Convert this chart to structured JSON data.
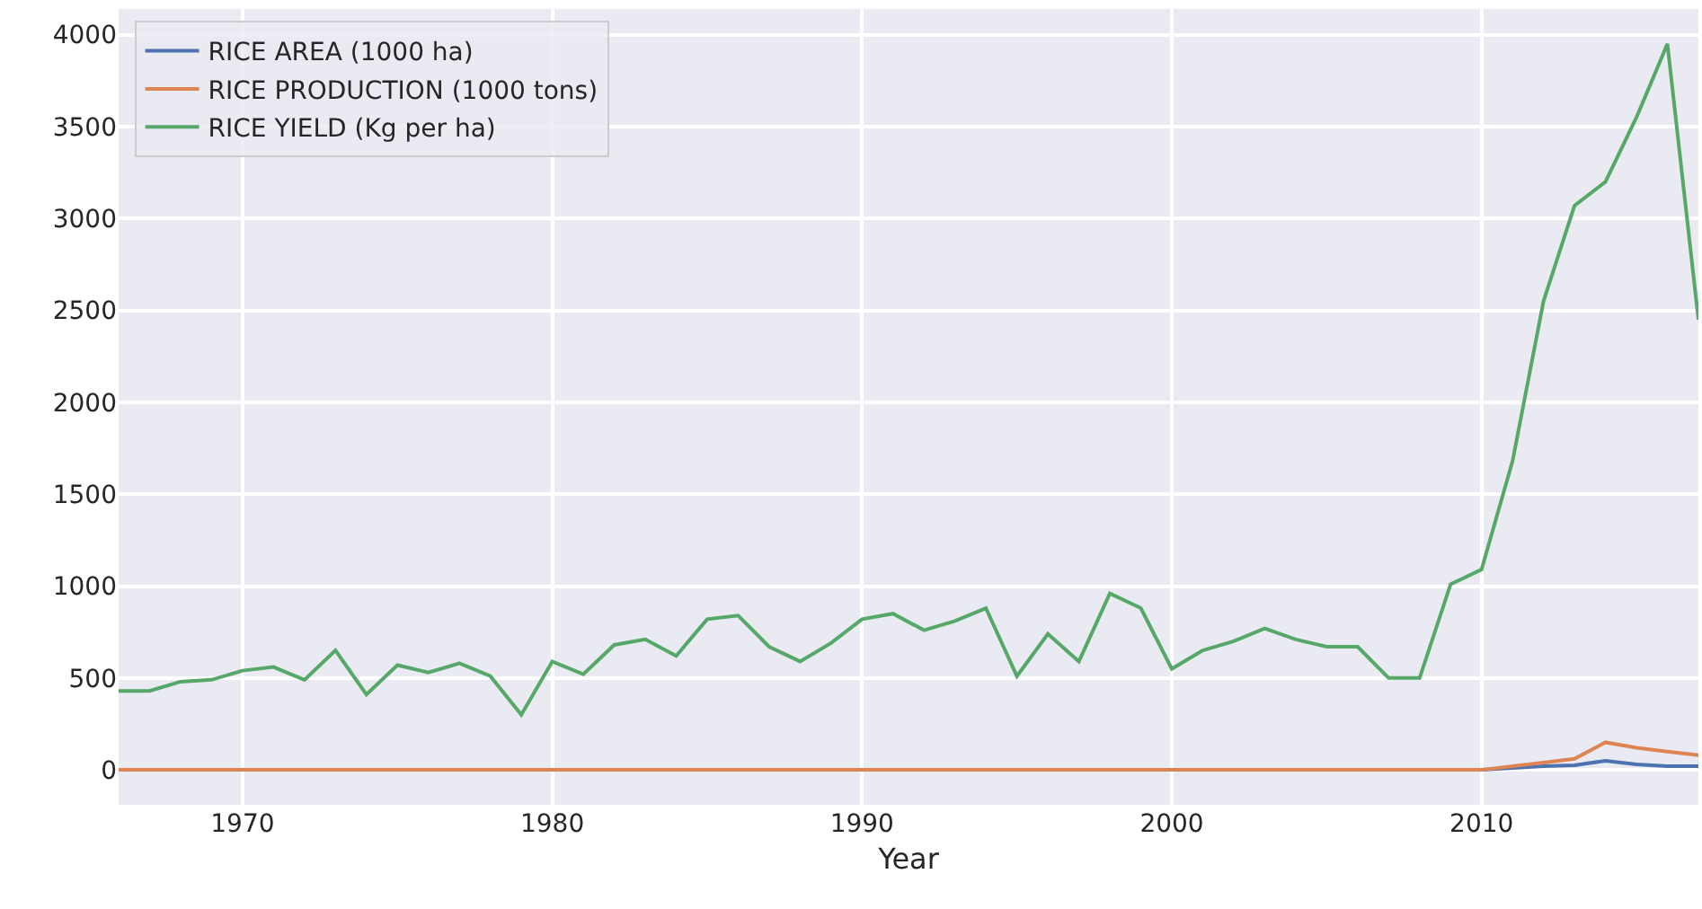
{
  "chart_data": {
    "type": "line",
    "xlabel": "Year",
    "x": [
      1966,
      1967,
      1968,
      1969,
      1970,
      1971,
      1972,
      1973,
      1974,
      1975,
      1976,
      1977,
      1978,
      1979,
      1980,
      1981,
      1982,
      1983,
      1984,
      1985,
      1986,
      1987,
      1988,
      1989,
      1990,
      1991,
      1992,
      1993,
      1994,
      1995,
      1996,
      1997,
      1998,
      1999,
      2000,
      2001,
      2002,
      2003,
      2004,
      2005,
      2006,
      2007,
      2008,
      2009,
      2010,
      2011,
      2012,
      2013,
      2014,
      2015,
      2016,
      2017
    ],
    "series": [
      {
        "name": "RICE AREA (1000 ha)",
        "color": "#4c72b0",
        "values": [
          null,
          null,
          null,
          null,
          null,
          null,
          null,
          null,
          null,
          null,
          null,
          null,
          null,
          null,
          null,
          null,
          null,
          null,
          null,
          null,
          null,
          null,
          null,
          null,
          null,
          null,
          null,
          null,
          null,
          null,
          null,
          null,
          null,
          null,
          null,
          null,
          null,
          null,
          null,
          null,
          null,
          null,
          null,
          null,
          0,
          10,
          20,
          25,
          50,
          30,
          20,
          20
        ]
      },
      {
        "name": "RICE PRODUCTION (1000 tons)",
        "color": "#dd8452",
        "values": [
          0,
          0,
          0,
          0,
          0,
          0,
          0,
          0,
          0,
          0,
          0,
          0,
          0,
          0,
          0,
          0,
          0,
          0,
          0,
          0,
          0,
          0,
          0,
          0,
          0,
          0,
          0,
          0,
          0,
          0,
          0,
          0,
          0,
          0,
          0,
          0,
          0,
          0,
          0,
          0,
          0,
          0,
          0,
          0,
          0,
          20,
          40,
          60,
          150,
          120,
          100,
          80
        ]
      },
      {
        "name": "RICE YIELD (Kg per ha)",
        "color": "#55a868",
        "values": [
          430,
          430,
          480,
          490,
          540,
          560,
          490,
          650,
          410,
          570,
          530,
          580,
          510,
          300,
          590,
          520,
          680,
          710,
          620,
          820,
          840,
          670,
          590,
          690,
          820,
          850,
          760,
          810,
          880,
          510,
          740,
          590,
          960,
          880,
          550,
          650,
          700,
          770,
          710,
          670,
          670,
          500,
          500,
          1010,
          1090,
          1680,
          2550,
          3070,
          3200,
          3550,
          3950,
          2450
        ]
      }
    ],
    "xlim": [
      1966,
      2017
    ],
    "xticks": [
      1970,
      1980,
      1990,
      2000,
      2010
    ],
    "ylim": [
      -190,
      4140
    ],
    "yticks": [
      0,
      500,
      1000,
      1500,
      2000,
      2500,
      3000,
      3500,
      4000
    ],
    "grid": true,
    "legend": "top left",
    "marker": "none",
    "line_style": "solid"
  }
}
